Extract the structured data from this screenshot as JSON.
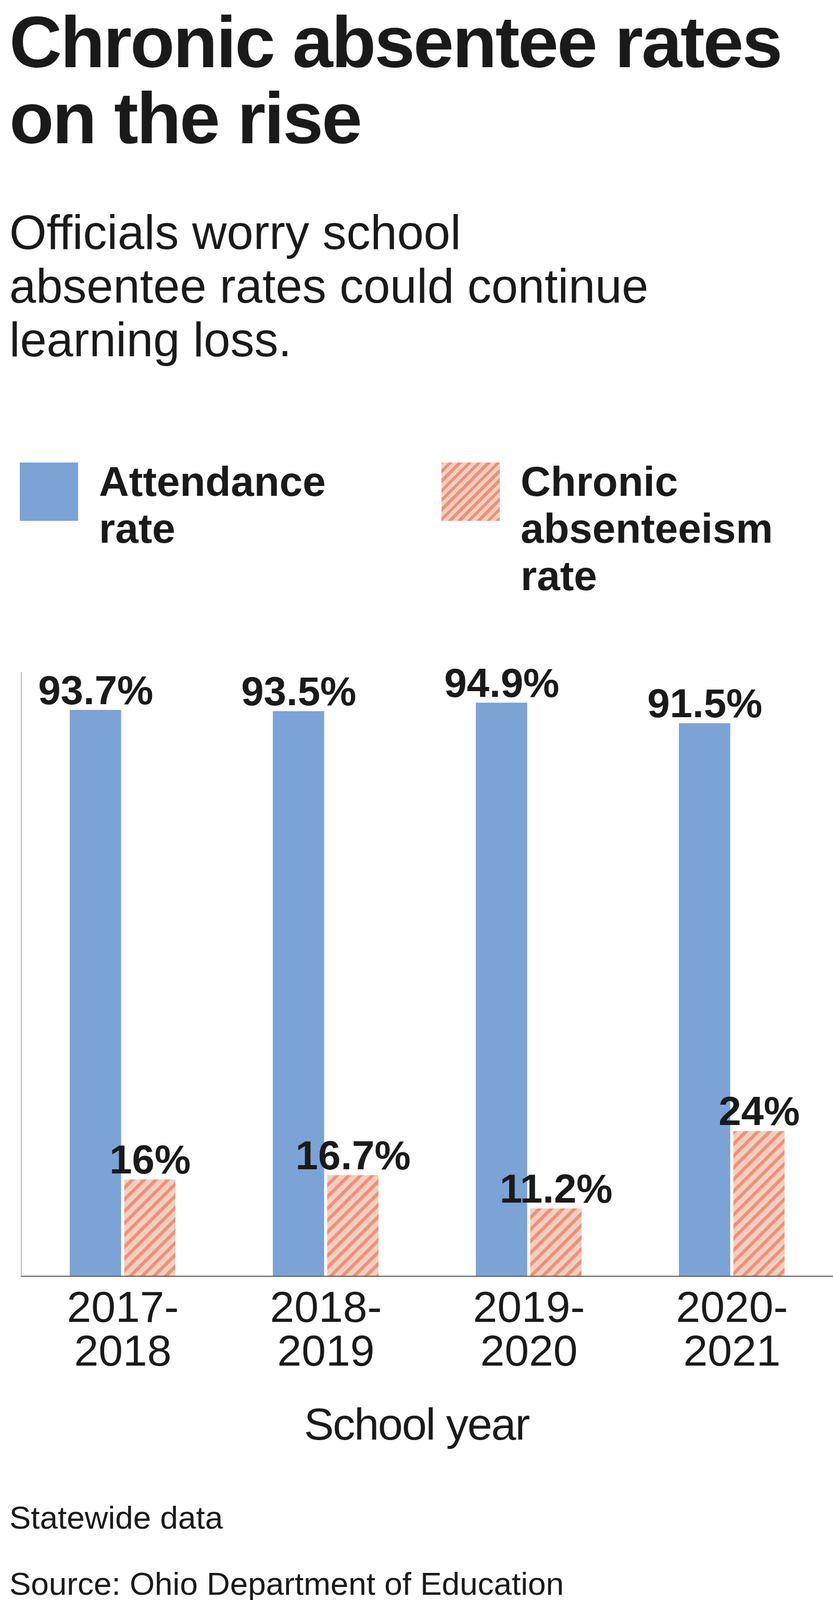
{
  "chart_data": {
    "type": "bar",
    "title": "Chronic absentee rates on the rise",
    "subtitle": "Officials worry school absentee rates could continue learning loss.",
    "x_label": "School year",
    "categories": [
      "2017-2018",
      "2018-2019",
      "2019-2020",
      "2020-2021"
    ],
    "series": [
      {
        "name": "Attendance rate",
        "color": "#7ba3d6",
        "values": [
          93.7,
          93.5,
          94.9,
          91.5
        ],
        "value_labels": [
          "93.7%",
          "93.5%",
          "94.9%",
          "91.5%"
        ]
      },
      {
        "name": "Chronic absenteeism rate",
        "color": "#ec9378",
        "values": [
          16,
          16.7,
          11.2,
          24
        ],
        "value_labels": [
          "16%",
          "16.7%",
          "11.2%",
          "24%"
        ]
      }
    ],
    "ylim": [
      0,
      100
    ],
    "yticks": [],
    "grid": false,
    "legend": "top-left",
    "data_labels": true,
    "tick_labels": "x",
    "notes": [
      "Statewide data",
      "Source: Ohio Department of Education"
    ]
  }
}
